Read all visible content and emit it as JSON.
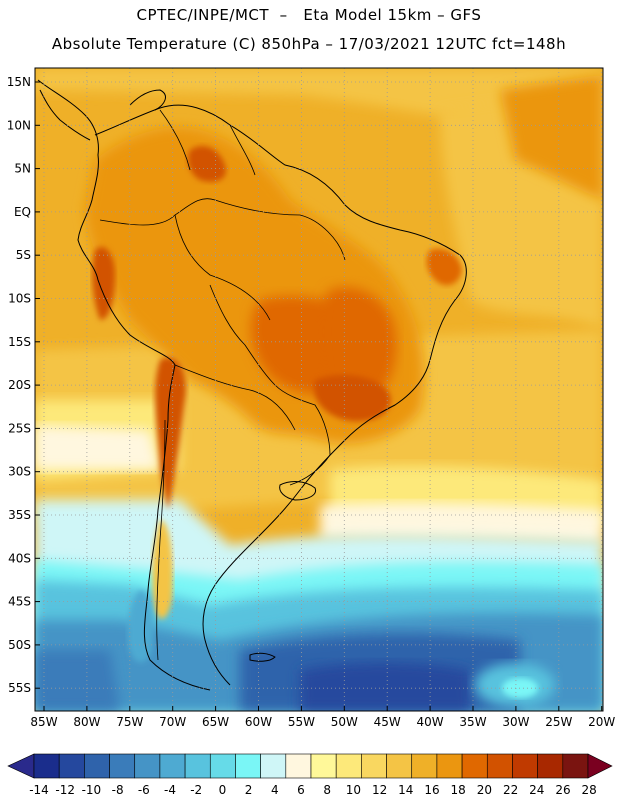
{
  "header": {
    "line1": "CPTEC/INPE/MCT  –   Eta Model 15km – GFS",
    "line2": "Absolute Temperature (C) 850hPa – 17/03/2021 12UTC fct=148h"
  },
  "map": {
    "lat_labels": [
      "15N",
      "10N",
      "5N",
      "EQ",
      "5S",
      "10S",
      "15S",
      "20S",
      "25S",
      "30S",
      "35S",
      "40S",
      "45S",
      "50S",
      "55S"
    ],
    "lon_labels": [
      "85W",
      "80W",
      "75W",
      "70W",
      "65W",
      "60W",
      "55W",
      "50W",
      "45W",
      "40W",
      "35W",
      "30W",
      "25W",
      "20W"
    ],
    "grid": "dotted"
  },
  "colorbar": {
    "labels": [
      "-14",
      "-12",
      "-10",
      "-8",
      "-6",
      "-4",
      "-2",
      "0",
      "2",
      "4",
      "6",
      "8",
      "10",
      "12",
      "14",
      "16",
      "18",
      "20",
      "22",
      "24",
      "26",
      "28"
    ],
    "colors": [
      "#1a2d8c",
      "#25489e",
      "#2f63ab",
      "#3a7cba",
      "#4594c6",
      "#4eaad2",
      "#58c3de",
      "#66dbe8",
      "#7af6f6",
      "#cff6f7",
      "#fff7df",
      "#fff899",
      "#fde97a",
      "#f9d760",
      "#f4c445",
      "#efb028",
      "#eb9610",
      "#e06800",
      "#d25200",
      "#c03a00",
      "#a82800",
      "#7a1410"
    ],
    "arrow_left": "#2a2a8c",
    "arrow_right": "#7a0020"
  }
}
